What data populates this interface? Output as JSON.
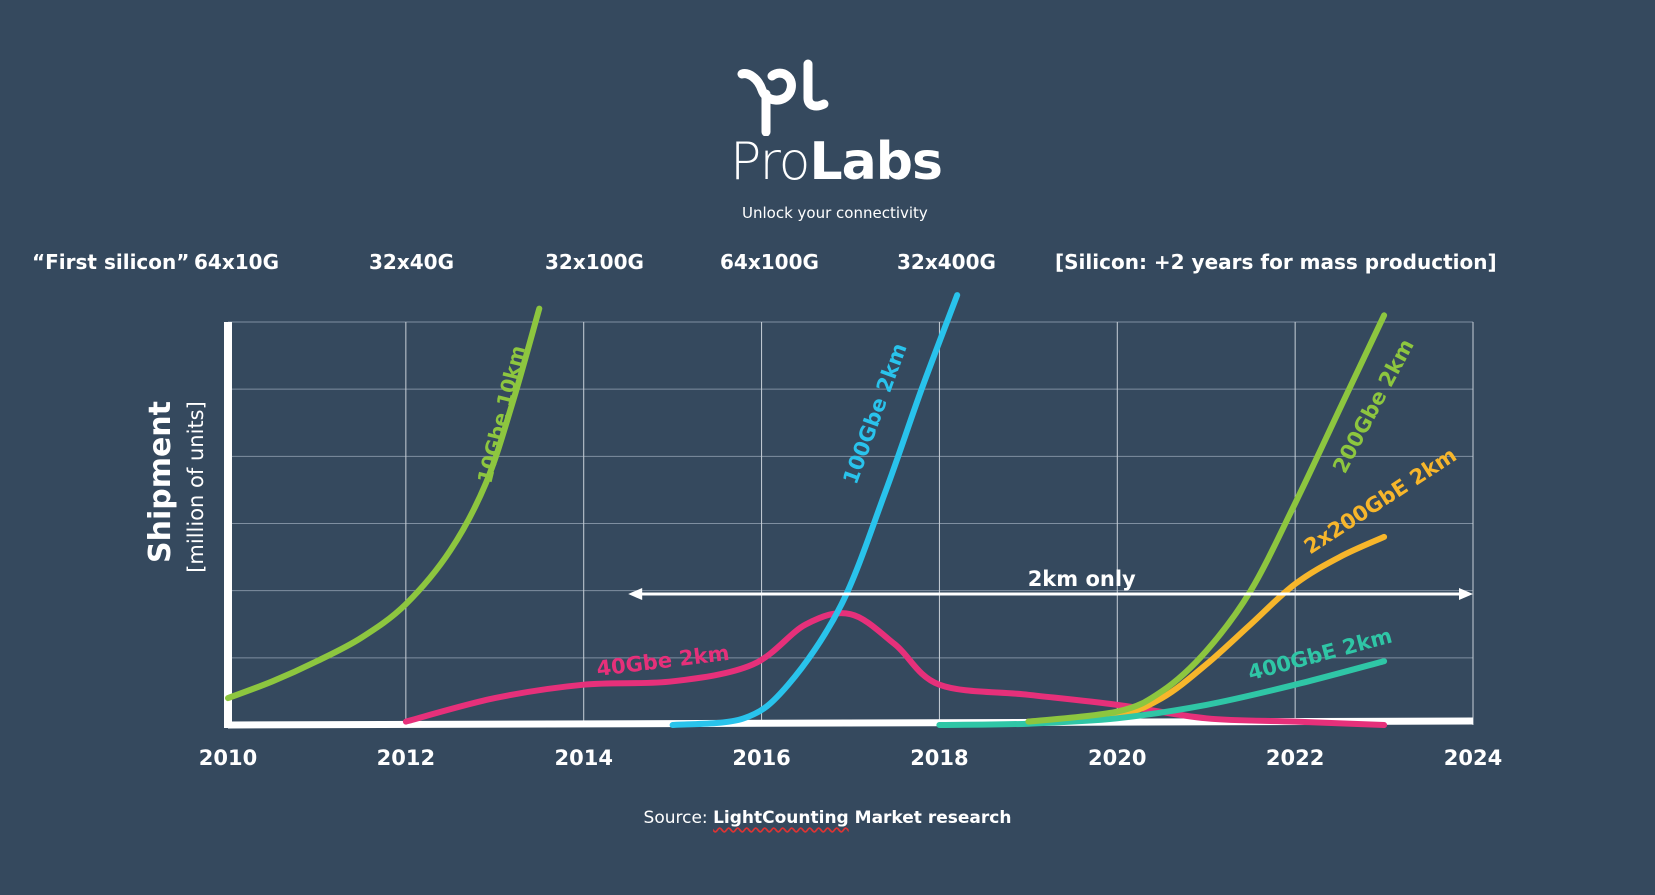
{
  "logo": {
    "brand_light": "Pro",
    "brand_bold": "Labs",
    "tagline": "Unlock your connectivity"
  },
  "silicon_row": {
    "label": "“First silicon”",
    "items": [
      "64x10G",
      "32x40G",
      "32x100G",
      "64x100G",
      "32x400G"
    ],
    "note": "[Silicon: +2 years for mass production]"
  },
  "source": {
    "prefix": "Source: ",
    "name": "LightCounting",
    "rest": " Market research"
  },
  "chart_data": {
    "type": "line",
    "ylabel": "Shipment",
    "ylabel_unit": "[million of units]",
    "x_ticks": [
      "2010",
      "2012",
      "2014",
      "2016",
      "2018",
      "2020",
      "2022",
      "2024"
    ],
    "xlim": [
      2010,
      2024
    ],
    "ylim": [
      0,
      6
    ],
    "grid": true,
    "annotation": {
      "text": "2km only",
      "x_start": 2014.5,
      "x_end": 2024
    },
    "series": [
      {
        "name": "10Gbe 10km",
        "color": "#8dc63f",
        "points": [
          [
            2010,
            0.4
          ],
          [
            2010.5,
            0.65
          ],
          [
            2011,
            0.95
          ],
          [
            2011.5,
            1.3
          ],
          [
            2012,
            1.8
          ],
          [
            2012.5,
            2.6
          ],
          [
            2012.9,
            3.6
          ],
          [
            2013.2,
            4.8
          ],
          [
            2013.5,
            6.2
          ]
        ]
      },
      {
        "name": "40Gbe 2km",
        "color": "#e6307a",
        "points": [
          [
            2012,
            0.05
          ],
          [
            2013,
            0.4
          ],
          [
            2014,
            0.6
          ],
          [
            2015,
            0.65
          ],
          [
            2015.9,
            0.9
          ],
          [
            2016.5,
            1.5
          ],
          [
            2017,
            1.65
          ],
          [
            2017.5,
            1.2
          ],
          [
            2018,
            0.6
          ],
          [
            2019,
            0.45
          ],
          [
            2020,
            0.3
          ],
          [
            2021,
            0.1
          ],
          [
            2022,
            0.05
          ],
          [
            2023,
            0.0
          ]
        ]
      },
      {
        "name": "100Gbe 2km",
        "color": "#29c3ec",
        "points": [
          [
            2015,
            0.0
          ],
          [
            2015.8,
            0.1
          ],
          [
            2016.3,
            0.6
          ],
          [
            2016.9,
            1.8
          ],
          [
            2017.4,
            3.5
          ],
          [
            2017.8,
            5.0
          ],
          [
            2018.2,
            6.4
          ]
        ]
      },
      {
        "name": "200Gbe 2km",
        "color": "#8dc63f",
        "points": [
          [
            2019,
            0.05
          ],
          [
            2020,
            0.2
          ],
          [
            2020.5,
            0.5
          ],
          [
            2021,
            1.1
          ],
          [
            2021.5,
            2.0
          ],
          [
            2022,
            3.3
          ],
          [
            2022.5,
            4.7
          ],
          [
            2023,
            6.1
          ]
        ]
      },
      {
        "name": "2x200GbE 2km",
        "color": "#f7b62b",
        "points": [
          [
            2019,
            0.05
          ],
          [
            2020,
            0.15
          ],
          [
            2020.5,
            0.4
          ],
          [
            2021,
            0.9
          ],
          [
            2021.5,
            1.5
          ],
          [
            2022,
            2.1
          ],
          [
            2022.5,
            2.5
          ],
          [
            2023,
            2.8
          ]
        ]
      },
      {
        "name": "400GbE 2km",
        "color": "#2fc6a6",
        "points": [
          [
            2018,
            0.0
          ],
          [
            2019,
            0.02
          ],
          [
            2020,
            0.1
          ],
          [
            2021,
            0.3
          ],
          [
            2022,
            0.6
          ],
          [
            2023,
            0.95
          ]
        ]
      }
    ]
  }
}
